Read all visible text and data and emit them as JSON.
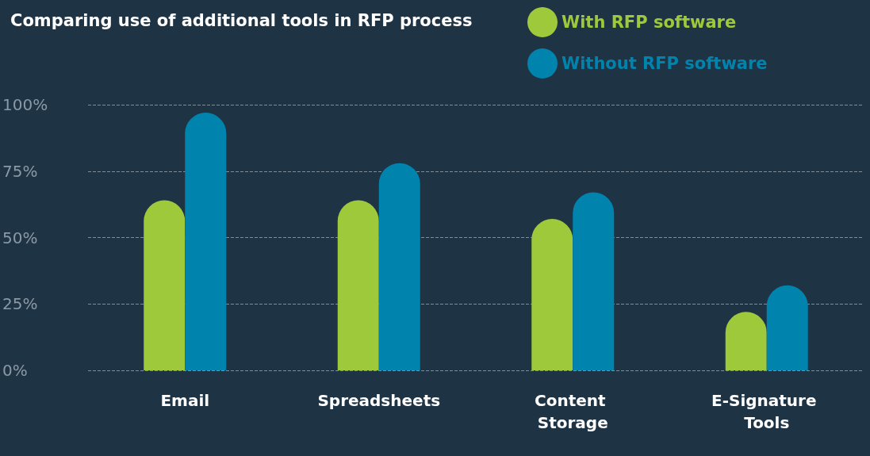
{
  "chart_data": {
    "type": "bar",
    "title": "Comparing use of additional tools in RFP process",
    "categories": [
      "Email",
      "Spreadsheets",
      "Content Storage",
      "E-Signature Tools"
    ],
    "series": [
      {
        "name": "With RFP software",
        "color": "#9dc93b",
        "values": [
          64,
          64,
          57,
          22
        ]
      },
      {
        "name": "Without RFP software",
        "color": "#0083ad",
        "values": [
          97,
          78,
          67,
          32
        ]
      }
    ],
    "ylim": [
      0,
      100
    ],
    "yticks": [
      {
        "value": 0,
        "label": "0%"
      },
      {
        "value": 25,
        "label": "25%"
      },
      {
        "value": 50,
        "label": "50%"
      },
      {
        "value": 75,
        "label": "75%"
      },
      {
        "value": 100,
        "label": "100%"
      }
    ],
    "grid": "y",
    "legend": "top right"
  }
}
